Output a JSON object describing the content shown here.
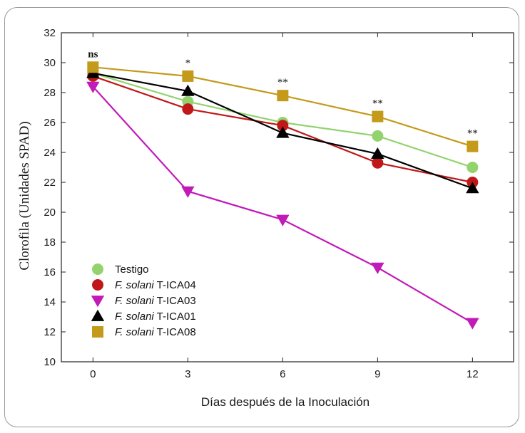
{
  "chart_data": {
    "type": "line",
    "xlabel": "Días después de la Inoculación",
    "ylabel": "Clorofila (Unidades SPAD)",
    "x": [
      0,
      3,
      6,
      9,
      12
    ],
    "xticks": [
      "0",
      "3",
      "6",
      "9",
      "12"
    ],
    "ylim": [
      10,
      32
    ],
    "yticks": [
      "10",
      "12",
      "14",
      "16",
      "18",
      "20",
      "22",
      "24",
      "26",
      "28",
      "30",
      "32"
    ],
    "grid": false,
    "legend_position": "bottom-left",
    "series": [
      {
        "name": "Testigo",
        "prefix": "",
        "suffix": "Testigo",
        "marker": "circle",
        "color": "#92d36e",
        "values": [
          29.3,
          27.4,
          26.0,
          25.1,
          23.0
        ]
      },
      {
        "name": "F. solani T-ICA04",
        "prefix": "F. solani",
        "suffix": " T-ICA04",
        "marker": "circle",
        "color": "#c01818",
        "values": [
          29.1,
          26.9,
          25.8,
          23.3,
          22.0
        ]
      },
      {
        "name": "F. solani T-ICA03",
        "prefix": "F. solani",
        "suffix": " T-ICA03",
        "marker": "triangle-down",
        "color": "#c21ab8",
        "values": [
          28.4,
          21.4,
          19.5,
          16.3,
          12.6
        ]
      },
      {
        "name": "F. solani T-ICA01",
        "prefix": "F. solani",
        "suffix": " T-ICA01",
        "marker": "triangle-up",
        "color": "#000000",
        "values": [
          29.3,
          28.1,
          25.3,
          23.9,
          21.6
        ]
      },
      {
        "name": "F. solani T-ICA08",
        "prefix": "F. solani",
        "suffix": " T-ICA08",
        "marker": "square",
        "color": "#c49a1a",
        "values": [
          29.7,
          29.1,
          27.8,
          26.4,
          24.4
        ]
      }
    ],
    "significance": [
      {
        "x": 0,
        "label": "ns"
      },
      {
        "x": 3,
        "label": "*"
      },
      {
        "x": 6,
        "label": "**"
      },
      {
        "x": 9,
        "label": "**"
      },
      {
        "x": 12,
        "label": "**"
      }
    ]
  }
}
